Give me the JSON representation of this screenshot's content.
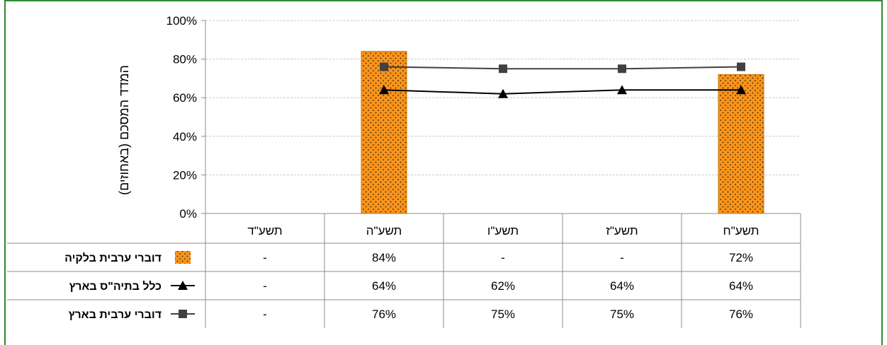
{
  "chart_data": {
    "type": "bar",
    "ylabel": "המדד המסכם (באחוזים)",
    "ylim": [
      0,
      100
    ],
    "yticks": [
      "0%",
      "20%",
      "40%",
      "60%",
      "80%",
      "100%"
    ],
    "grid": true,
    "categories": [
      "תשע\"ח",
      "תשע\"ז",
      "תשע\"ו",
      "תשע\"ה",
      "תשע\"ד"
    ],
    "series": [
      {
        "name": "דוברי ערבית בלקיה",
        "kind": "bar",
        "color": "#f7941d",
        "pattern": "dotted",
        "values": [
          72,
          null,
          null,
          84,
          null
        ],
        "table_values": [
          "72%",
          "-",
          "-",
          "84%",
          "-"
        ]
      },
      {
        "name": "כלל בתיה\"ס בארץ",
        "kind": "line",
        "marker": "triangle",
        "color": "#000000",
        "values": [
          64,
          64,
          62,
          64,
          null
        ],
        "table_values": [
          "64%",
          "64%",
          "62%",
          "64%",
          "-"
        ]
      },
      {
        "name": "דוברי ערבית בארץ",
        "kind": "line",
        "marker": "square",
        "color": "#404040",
        "values": [
          76,
          75,
          75,
          76,
          null
        ],
        "table_values": [
          "76%",
          "75%",
          "75%",
          "76%",
          "-"
        ]
      }
    ]
  }
}
